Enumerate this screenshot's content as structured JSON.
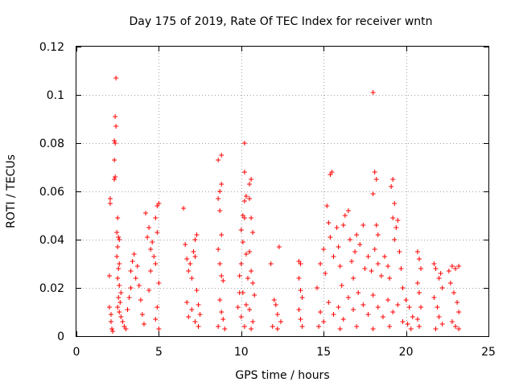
{
  "chart_data": {
    "type": "scatter",
    "title": "Day 175 of 2019, Rate Of TEC Index for receiver wntn",
    "xlabel": "GPS time / hours",
    "ylabel": "ROTI / TECUs",
    "xlim": [
      0,
      25
    ],
    "ylim": [
      0,
      0.12
    ],
    "xticks": [
      0,
      5,
      10,
      15,
      20,
      25
    ],
    "xtick_labels": [
      "0",
      "5",
      "10",
      "15",
      "20",
      "25"
    ],
    "yticks": [
      0,
      0.02,
      0.04,
      0.06,
      0.08,
      0.1,
      0.12
    ],
    "ytick_labels": [
      "0",
      "0.02",
      "0.04",
      "0.06",
      "0.08",
      "0.1",
      "0.12"
    ],
    "grid": true,
    "marker": "+",
    "color": "#ff0000",
    "series": [
      {
        "name": "ROTI",
        "points": [
          [
            2.0,
            0.025
          ],
          [
            2.0,
            0.012
          ],
          [
            2.05,
            0.055
          ],
          [
            2.05,
            0.057
          ],
          [
            2.1,
            0.009
          ],
          [
            2.1,
            0.006
          ],
          [
            2.15,
            0.003
          ],
          [
            2.2,
            0.002
          ],
          [
            2.4,
            0.107
          ],
          [
            2.35,
            0.091
          ],
          [
            2.4,
            0.087
          ],
          [
            2.3,
            0.081
          ],
          [
            2.35,
            0.08
          ],
          [
            2.3,
            0.073
          ],
          [
            2.35,
            0.066
          ],
          [
            2.3,
            0.065
          ],
          [
            2.5,
            0.049
          ],
          [
            2.45,
            0.043
          ],
          [
            2.55,
            0.041
          ],
          [
            2.6,
            0.04
          ],
          [
            2.5,
            0.037
          ],
          [
            2.45,
            0.033
          ],
          [
            2.6,
            0.03
          ],
          [
            2.55,
            0.028
          ],
          [
            2.5,
            0.024
          ],
          [
            2.6,
            0.021
          ],
          [
            2.7,
            0.018
          ],
          [
            2.55,
            0.016
          ],
          [
            2.65,
            0.014
          ],
          [
            2.5,
            0.012
          ],
          [
            2.6,
            0.01
          ],
          [
            2.7,
            0.008
          ],
          [
            2.8,
            0.006
          ],
          [
            2.9,
            0.004
          ],
          [
            3.0,
            0.003
          ],
          [
            3.1,
            0.011
          ],
          [
            3.2,
            0.016
          ],
          [
            3.3,
            0.02
          ],
          [
            3.3,
            0.027
          ],
          [
            3.4,
            0.031
          ],
          [
            3.5,
            0.034
          ],
          [
            3.6,
            0.024
          ],
          [
            3.7,
            0.029
          ],
          [
            3.8,
            0.021
          ],
          [
            3.9,
            0.015
          ],
          [
            4.0,
            0.009
          ],
          [
            4.1,
            0.005
          ],
          [
            4.2,
            0.051
          ],
          [
            4.3,
            0.041
          ],
          [
            4.4,
            0.045
          ],
          [
            4.5,
            0.036
          ],
          [
            4.6,
            0.039
          ],
          [
            4.5,
            0.027
          ],
          [
            4.4,
            0.019
          ],
          [
            4.7,
            0.033
          ],
          [
            4.8,
            0.03
          ],
          [
            4.8,
            0.049
          ],
          [
            4.9,
            0.054
          ],
          [
            5.0,
            0.055
          ],
          [
            4.9,
            0.043
          ],
          [
            5.0,
            0.022
          ],
          [
            4.9,
            0.012
          ],
          [
            4.8,
            0.007
          ],
          [
            5.0,
            0.003
          ],
          [
            6.5,
            0.053
          ],
          [
            6.6,
            0.038
          ],
          [
            6.7,
            0.032
          ],
          [
            6.8,
            0.027
          ],
          [
            6.9,
            0.03
          ],
          [
            7.0,
            0.024
          ],
          [
            7.1,
            0.035
          ],
          [
            7.2,
            0.04
          ],
          [
            7.3,
            0.042
          ],
          [
            7.2,
            0.033
          ],
          [
            7.3,
            0.019
          ],
          [
            7.4,
            0.013
          ],
          [
            7.5,
            0.009
          ],
          [
            7.2,
            0.006
          ],
          [
            7.4,
            0.004
          ],
          [
            6.7,
            0.014
          ],
          [
            6.8,
            0.008
          ],
          [
            7.0,
            0.011
          ],
          [
            8.6,
            0.073
          ],
          [
            8.8,
            0.075
          ],
          [
            8.8,
            0.063
          ],
          [
            8.7,
            0.06
          ],
          [
            8.6,
            0.057
          ],
          [
            8.7,
            0.052
          ],
          [
            8.8,
            0.042
          ],
          [
            8.6,
            0.036
          ],
          [
            8.7,
            0.03
          ],
          [
            8.8,
            0.025
          ],
          [
            8.9,
            0.023
          ],
          [
            8.7,
            0.015
          ],
          [
            8.8,
            0.01
          ],
          [
            8.9,
            0.007
          ],
          [
            8.6,
            0.004
          ],
          [
            9.0,
            0.003
          ],
          [
            10.0,
            0.044
          ],
          [
            10.1,
            0.05
          ],
          [
            10.2,
            0.056
          ],
          [
            10.3,
            0.058
          ],
          [
            10.2,
            0.049
          ],
          [
            10.2,
            0.08
          ],
          [
            10.2,
            0.068
          ],
          [
            10.1,
            0.039
          ],
          [
            10.3,
            0.034
          ],
          [
            10.0,
            0.03
          ],
          [
            10.4,
            0.024
          ],
          [
            10.1,
            0.018
          ],
          [
            10.3,
            0.013
          ],
          [
            10.0,
            0.008
          ],
          [
            10.2,
            0.004
          ],
          [
            10.5,
            0.063
          ],
          [
            10.6,
            0.065
          ],
          [
            10.5,
            0.057
          ],
          [
            10.6,
            0.049
          ],
          [
            10.7,
            0.043
          ],
          [
            10.5,
            0.035
          ],
          [
            10.6,
            0.027
          ],
          [
            10.7,
            0.022
          ],
          [
            10.8,
            0.017
          ],
          [
            10.5,
            0.011
          ],
          [
            10.7,
            0.006
          ],
          [
            10.6,
            0.003
          ],
          [
            9.8,
            0.012
          ],
          [
            9.9,
            0.018
          ],
          [
            9.9,
            0.025
          ],
          [
            11.8,
            0.03
          ],
          [
            12.0,
            0.015
          ],
          [
            12.1,
            0.013
          ],
          [
            12.2,
            0.009
          ],
          [
            12.3,
            0.037
          ],
          [
            12.4,
            0.006
          ],
          [
            11.9,
            0.004
          ],
          [
            12.2,
            0.003
          ],
          [
            13.5,
            0.031
          ],
          [
            13.6,
            0.03
          ],
          [
            13.5,
            0.024
          ],
          [
            13.6,
            0.019
          ],
          [
            13.7,
            0.016
          ],
          [
            13.5,
            0.011
          ],
          [
            13.6,
            0.007
          ],
          [
            13.7,
            0.004
          ],
          [
            14.6,
            0.02
          ],
          [
            14.8,
            0.03
          ],
          [
            15.0,
            0.036
          ],
          [
            15.1,
            0.026
          ],
          [
            15.2,
            0.054
          ],
          [
            15.3,
            0.047
          ],
          [
            15.4,
            0.067
          ],
          [
            15.5,
            0.068
          ],
          [
            15.4,
            0.041
          ],
          [
            15.6,
            0.033
          ],
          [
            15.8,
            0.045
          ],
          [
            15.9,
            0.037
          ],
          [
            16.0,
            0.029
          ],
          [
            16.1,
            0.021
          ],
          [
            16.2,
            0.046
          ],
          [
            16.3,
            0.05
          ],
          [
            16.5,
            0.052
          ],
          [
            16.6,
            0.04
          ],
          [
            16.7,
            0.031
          ],
          [
            16.8,
            0.024
          ],
          [
            16.9,
            0.035
          ],
          [
            17.0,
            0.042
          ],
          [
            17.2,
            0.038
          ],
          [
            17.4,
            0.046
          ],
          [
            17.5,
            0.028
          ],
          [
            17.7,
            0.033
          ],
          [
            17.9,
            0.027
          ],
          [
            18.0,
            0.101
          ],
          [
            18.1,
            0.068
          ],
          [
            18.2,
            0.065
          ],
          [
            18.0,
            0.059
          ],
          [
            18.2,
            0.046
          ],
          [
            18.3,
            0.042
          ],
          [
            18.1,
            0.036
          ],
          [
            18.3,
            0.03
          ],
          [
            18.5,
            0.025
          ],
          [
            18.7,
            0.033
          ],
          [
            18.9,
            0.029
          ],
          [
            19.0,
            0.024
          ],
          [
            19.1,
            0.062
          ],
          [
            19.2,
            0.065
          ],
          [
            19.3,
            0.055
          ],
          [
            19.2,
            0.049
          ],
          [
            19.3,
            0.04
          ],
          [
            19.4,
            0.045
          ],
          [
            19.5,
            0.048
          ],
          [
            19.6,
            0.035
          ],
          [
            19.7,
            0.028
          ],
          [
            19.8,
            0.02
          ],
          [
            20.0,
            0.015
          ],
          [
            20.2,
            0.012
          ],
          [
            20.4,
            0.008
          ],
          [
            14.8,
            0.01
          ],
          [
            15.0,
            0.006
          ],
          [
            15.3,
            0.014
          ],
          [
            15.6,
            0.009
          ],
          [
            15.9,
            0.012
          ],
          [
            16.2,
            0.007
          ],
          [
            16.5,
            0.016
          ],
          [
            16.8,
            0.011
          ],
          [
            17.1,
            0.018
          ],
          [
            17.4,
            0.013
          ],
          [
            17.7,
            0.009
          ],
          [
            18.0,
            0.017
          ],
          [
            18.3,
            0.012
          ],
          [
            18.6,
            0.008
          ],
          [
            18.9,
            0.015
          ],
          [
            19.2,
            0.01
          ],
          [
            19.5,
            0.013
          ],
          [
            19.8,
            0.006
          ],
          [
            20.1,
            0.005
          ],
          [
            14.7,
            0.004
          ],
          [
            16.0,
            0.003
          ],
          [
            17.0,
            0.004
          ],
          [
            18.0,
            0.003
          ],
          [
            19.0,
            0.004
          ],
          [
            20.3,
            0.003
          ],
          [
            20.7,
            0.035
          ],
          [
            20.8,
            0.032
          ],
          [
            20.9,
            0.028
          ],
          [
            20.7,
            0.022
          ],
          [
            20.8,
            0.018
          ],
          [
            20.9,
            0.012
          ],
          [
            20.7,
            0.007
          ],
          [
            20.8,
            0.004
          ],
          [
            21.7,
            0.03
          ],
          [
            21.8,
            0.028
          ],
          [
            22.0,
            0.024
          ],
          [
            22.1,
            0.026
          ],
          [
            22.2,
            0.02
          ],
          [
            21.7,
            0.016
          ],
          [
            21.9,
            0.012
          ],
          [
            22.0,
            0.008
          ],
          [
            22.2,
            0.005
          ],
          [
            21.8,
            0.003
          ],
          [
            22.6,
            0.027
          ],
          [
            22.8,
            0.029
          ],
          [
            23.0,
            0.028
          ],
          [
            23.2,
            0.029
          ],
          [
            22.7,
            0.022
          ],
          [
            22.9,
            0.018
          ],
          [
            23.1,
            0.014
          ],
          [
            23.2,
            0.01
          ],
          [
            22.8,
            0.006
          ],
          [
            23.0,
            0.004
          ],
          [
            23.2,
            0.003
          ]
        ]
      }
    ]
  }
}
